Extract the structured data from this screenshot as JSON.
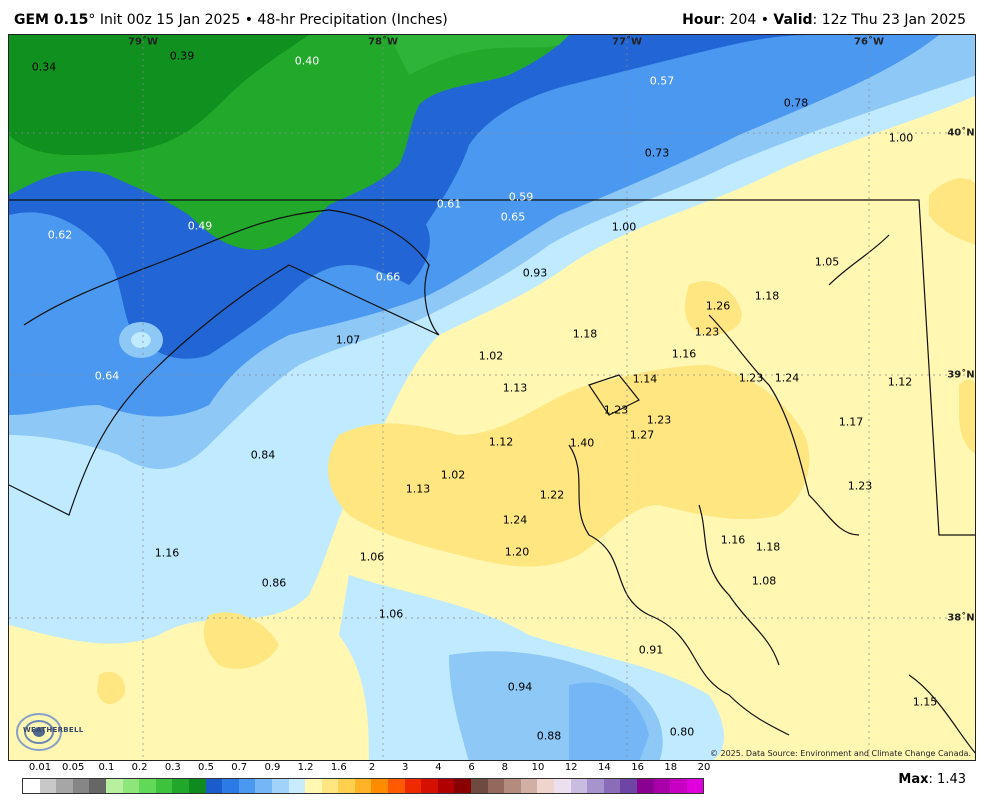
{
  "header": {
    "model": "GEM 0.15",
    "degree": "°",
    "init": "Init 00z 15 Jan 2025",
    "bullet": "•",
    "product": "48-hr Precipitation (Inches)",
    "hour_label": "Hour",
    "hour_value": ": 204",
    "valid_label": "Valid",
    "valid_value": ": 12z Thu 23 Jan 2025"
  },
  "axes": {
    "lon": [
      "79˚W",
      "78˚W",
      "77˚W",
      "76˚W"
    ],
    "lat": [
      "40˚N",
      "39˚N",
      "38˚N"
    ]
  },
  "values": [
    {
      "v": "0.34",
      "white": false
    },
    {
      "v": "0.39",
      "white": false
    },
    {
      "v": "0.40",
      "white": true
    },
    {
      "v": "0.57",
      "white": true
    },
    {
      "v": "0.78",
      "white": false
    },
    {
      "v": "1.00",
      "white": false
    },
    {
      "v": "0.73",
      "white": false
    },
    {
      "v": "0.61",
      "white": true
    },
    {
      "v": "0.59",
      "white": true
    },
    {
      "v": "0.65",
      "white": true
    },
    {
      "v": "1.00",
      "white": false
    },
    {
      "v": "0.62",
      "white": true
    },
    {
      "v": "0.49",
      "white": true
    },
    {
      "v": "0.66",
      "white": true
    },
    {
      "v": "0.93",
      "white": false
    },
    {
      "v": "1.05",
      "white": false
    },
    {
      "v": "1.26",
      "white": false
    },
    {
      "v": "1.18",
      "white": false
    },
    {
      "v": "1.23",
      "white": false
    },
    {
      "v": "1.18",
      "white": false
    },
    {
      "v": "1.07",
      "white": false
    },
    {
      "v": "1.02",
      "white": false
    },
    {
      "v": "1.16",
      "white": false
    },
    {
      "v": "0.64",
      "white": true
    },
    {
      "v": "1.13",
      "white": false
    },
    {
      "v": "1.14",
      "white": false
    },
    {
      "v": "1.23",
      "white": false
    },
    {
      "v": "1.24",
      "white": false
    },
    {
      "v": "1.12",
      "white": false
    },
    {
      "v": "1.23",
      "white": false
    },
    {
      "v": "1.23",
      "white": false
    },
    {
      "v": "1.27",
      "white": false
    },
    {
      "v": "1.17",
      "white": false
    },
    {
      "v": "0.84",
      "white": false
    },
    {
      "v": "1.12",
      "white": false
    },
    {
      "v": "1.40",
      "white": false
    },
    {
      "v": "1.02",
      "white": false
    },
    {
      "v": "1.13",
      "white": false
    },
    {
      "v": "1.22",
      "white": false
    },
    {
      "v": "1.23",
      "white": false
    },
    {
      "v": "1.24",
      "white": false
    },
    {
      "v": "1.16",
      "white": false
    },
    {
      "v": "1.16",
      "white": false
    },
    {
      "v": "1.18",
      "white": false
    },
    {
      "v": "1.20",
      "white": false
    },
    {
      "v": "1.06",
      "white": false
    },
    {
      "v": "1.08",
      "white": false
    },
    {
      "v": "0.86",
      "white": false
    },
    {
      "v": "1.06",
      "white": false
    },
    {
      "v": "0.91",
      "white": false
    },
    {
      "v": "0.94",
      "white": false
    },
    {
      "v": "1.15",
      "white": false
    },
    {
      "v": "0.80",
      "white": false
    },
    {
      "v": "0.88",
      "white": false
    }
  ],
  "credit": "© 2025. Data Source: Environment and Climate Change Canada.",
  "logo": "WEATHERBELL",
  "legend": {
    "labels": [
      "0.01",
      "0.05",
      "0.1",
      "0.2",
      "0.3",
      "0.5",
      "0.7",
      "0.9",
      "1.2",
      "1.6",
      "2",
      "3",
      "4",
      "6",
      "8",
      "10",
      "12",
      "14",
      "16",
      "18",
      "20"
    ],
    "colors": [
      "#ffffff",
      "#c8c8c8",
      "#a6a6a6",
      "#868686",
      "#666666",
      "#b8f0a0",
      "#8ee67a",
      "#62d858",
      "#3ec33c",
      "#21a82a",
      "#0f8a1e",
      "#1a5ccc",
      "#2c7ae6",
      "#4a98f0",
      "#74b6f6",
      "#a0d2fa",
      "#c8ecfc",
      "#fff7b2",
      "#ffe680",
      "#ffd04d",
      "#ffb326",
      "#ff8c00",
      "#ff5a00",
      "#f02a00",
      "#d61000",
      "#b00000",
      "#8a0000",
      "#6e4a40",
      "#92695c",
      "#b48c7e",
      "#d2afa4",
      "#eed4cc",
      "#ece0ee",
      "#c8bce0",
      "#a894cc",
      "#8a6cb8",
      "#6e44a4",
      "#8a0090",
      "#a800a8",
      "#c800c4",
      "#e000de"
    ]
  },
  "max_label": "Max",
  "max_value": ": 1.43"
}
